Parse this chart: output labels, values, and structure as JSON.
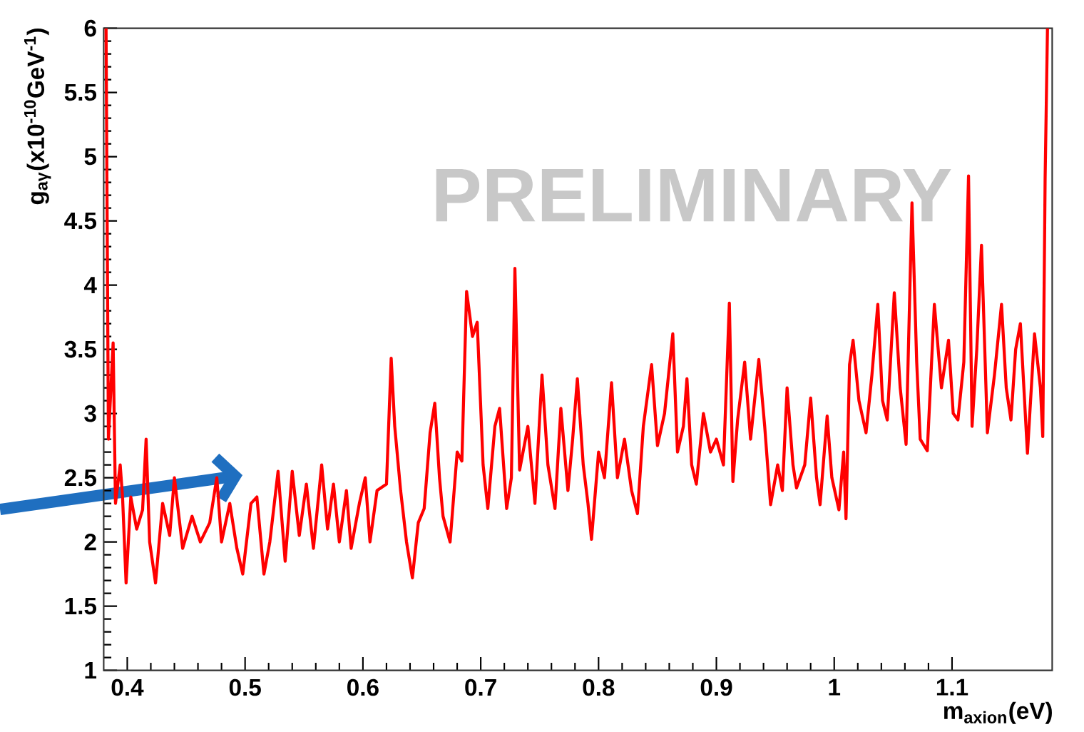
{
  "chart_data": {
    "type": "line",
    "xlabel": "m$_{axion}$(eV)",
    "ylabel": "g$_{aγ}$(x10$^{-10}$GeV$^{-1}$)",
    "annotations": [
      "PRELIMINARY"
    ],
    "xlim": [
      0.38,
      1.185
    ],
    "ylim": [
      1,
      6
    ],
    "xticks": [
      0.4,
      0.5,
      0.6,
      0.7,
      0.8,
      0.9,
      1,
      1.1
    ],
    "yticks": [
      1,
      1.5,
      2,
      2.5,
      3,
      3.5,
      4,
      4.5,
      5,
      5.5,
      6
    ],
    "line_style": "solid",
    "series": [
      {
        "color": "#ff0000",
        "x": [
          0.382,
          0.384,
          0.388,
          0.39,
          0.394,
          0.396,
          0.399,
          0.403,
          0.408,
          0.413,
          0.416,
          0.419,
          0.424,
          0.43,
          0.436,
          0.44,
          0.447,
          0.455,
          0.462,
          0.47,
          0.476,
          0.48,
          0.487,
          0.493,
          0.498,
          0.505,
          0.51,
          0.516,
          0.521,
          0.528,
          0.534,
          0.54,
          0.546,
          0.552,
          0.558,
          0.565,
          0.57,
          0.575,
          0.58,
          0.586,
          0.59,
          0.597,
          0.602,
          0.606,
          0.612,
          0.62,
          0.624,
          0.627,
          0.632,
          0.637,
          0.642,
          0.647,
          0.652,
          0.657,
          0.661,
          0.665,
          0.668,
          0.674,
          0.68,
          0.684,
          0.688,
          0.693,
          0.697,
          0.702,
          0.706,
          0.712,
          0.716,
          0.722,
          0.726,
          0.729,
          0.733,
          0.74,
          0.746,
          0.752,
          0.757,
          0.763,
          0.768,
          0.774,
          0.778,
          0.782,
          0.787,
          0.791,
          0.794,
          0.8,
          0.805,
          0.811,
          0.816,
          0.822,
          0.828,
          0.833,
          0.838,
          0.845,
          0.85,
          0.856,
          0.863,
          0.867,
          0.872,
          0.875,
          0.879,
          0.883,
          0.889,
          0.895,
          0.9,
          0.906,
          0.911,
          0.914,
          0.918,
          0.924,
          0.929,
          0.936,
          0.941,
          0.946,
          0.952,
          0.956,
          0.96,
          0.965,
          0.968,
          0.975,
          0.98,
          0.985,
          0.988,
          0.994,
          0.998,
          1.004,
          1.008,
          1.01,
          1.013,
          1.016,
          1.021,
          1.027,
          1.032,
          1.037,
          1.041,
          1.045,
          1.051,
          1.056,
          1.061,
          1.066,
          1.07,
          1.073,
          1.079,
          1.085,
          1.091,
          1.097,
          1.101,
          1.105,
          1.11,
          1.114,
          1.117,
          1.121,
          1.125,
          1.13,
          1.136,
          1.142,
          1.146,
          1.15,
          1.154,
          1.158,
          1.164,
          1.17,
          1.175,
          1.177,
          1.179,
          1.181
        ],
        "values": [
          6.0,
          2.8,
          3.55,
          2.3,
          2.6,
          2.35,
          1.68,
          2.35,
          2.1,
          2.25,
          2.8,
          2.0,
          1.68,
          2.3,
          2.05,
          2.5,
          1.95,
          2.2,
          2.0,
          2.15,
          2.5,
          2.0,
          2.3,
          1.95,
          1.75,
          2.3,
          2.35,
          1.75,
          2.0,
          2.55,
          1.85,
          2.55,
          2.05,
          2.45,
          1.95,
          2.6,
          2.1,
          2.45,
          2.0,
          2.4,
          1.95,
          2.3,
          2.5,
          2.0,
          2.4,
          2.45,
          3.43,
          2.9,
          2.4,
          2.0,
          1.72,
          2.15,
          2.26,
          2.85,
          3.08,
          2.5,
          2.2,
          2.0,
          2.7,
          2.63,
          3.95,
          3.6,
          3.71,
          2.6,
          2.26,
          2.9,
          3.04,
          2.26,
          2.5,
          4.13,
          2.56,
          2.9,
          2.3,
          3.3,
          2.6,
          2.26,
          3.04,
          2.4,
          2.8,
          3.27,
          2.6,
          2.3,
          2.02,
          2.7,
          2.5,
          3.24,
          2.5,
          2.8,
          2.4,
          2.22,
          2.9,
          3.38,
          2.75,
          3.0,
          3.62,
          2.7,
          2.9,
          3.27,
          2.6,
          2.45,
          3.0,
          2.7,
          2.8,
          2.6,
          3.86,
          2.47,
          2.95,
          3.4,
          2.8,
          3.42,
          2.9,
          2.29,
          2.6,
          2.4,
          3.2,
          2.6,
          2.42,
          2.6,
          3.12,
          2.5,
          2.29,
          2.98,
          2.5,
          2.25,
          2.7,
          2.18,
          3.38,
          3.57,
          3.1,
          2.85,
          3.3,
          3.85,
          3.1,
          2.95,
          3.94,
          3.2,
          2.76,
          4.64,
          3.4,
          2.8,
          2.71,
          3.85,
          3.2,
          3.57,
          3.0,
          2.95,
          3.4,
          4.85,
          2.9,
          3.5,
          4.31,
          2.85,
          3.3,
          3.85,
          3.2,
          2.95,
          3.5,
          3.7,
          2.69,
          3.62,
          3.2,
          2.82,
          4.83,
          6.0
        ]
      }
    ]
  }
}
